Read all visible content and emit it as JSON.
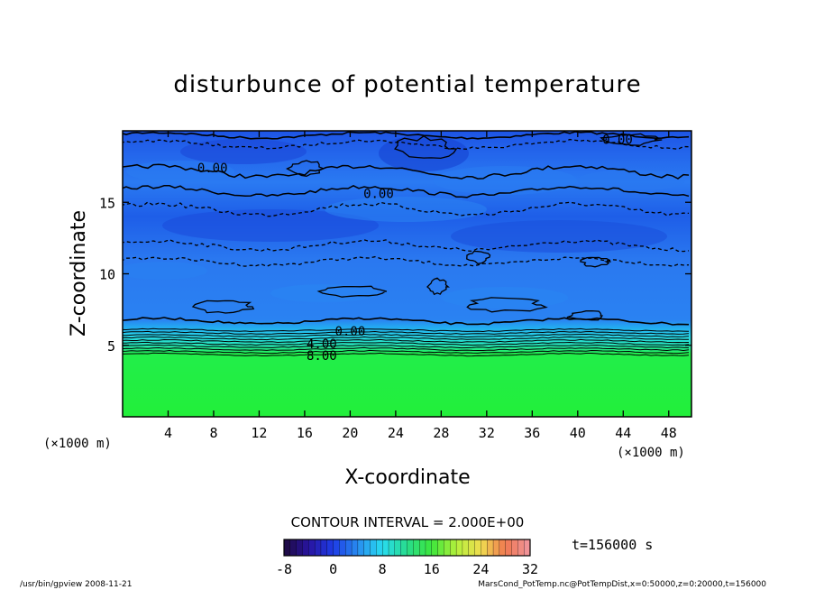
{
  "chart_data": {
    "type": "heatmap",
    "title": "disturbunce of potential temperature",
    "xlabel": "X-coordinate",
    "ylabel": "Z-coordinate",
    "x_unit_left": "(×1000 m)",
    "x_unit_right": "(×1000 m)",
    "xlim": [
      0,
      50
    ],
    "ylim": [
      0,
      20
    ],
    "xticks": [
      4,
      8,
      12,
      16,
      20,
      24,
      28,
      32,
      36,
      40,
      44,
      48
    ],
    "xtick_labels": [
      "4",
      "8",
      "12",
      "16",
      "20",
      "24",
      "28",
      "32",
      "36",
      "40",
      "44",
      "48"
    ],
    "yticks": [
      5,
      10,
      15
    ],
    "ytick_labels": [
      "5",
      "10",
      "15"
    ],
    "contour_labels": [
      {
        "text": "0.00",
        "x": 43.5,
        "y": 19.4
      },
      {
        "text": "0.00",
        "x": 7.9,
        "y": 17.4
      },
      {
        "text": "0.00",
        "x": 22.5,
        "y": 15.6
      },
      {
        "text": "0.00",
        "x": 20.0,
        "y": 6.0
      },
      {
        "text": "4.00",
        "x": 17.5,
        "y": 5.1
      },
      {
        "text": "8.00",
        "x": 17.5,
        "y": 4.3
      }
    ],
    "contour_interval_text": "CONTOUR INTERVAL = 2.000E+00",
    "colorbar": {
      "min": -8,
      "max": 32,
      "tick_values": [
        -8,
        0,
        8,
        16,
        24,
        32
      ],
      "tick_labels": [
        "-8",
        "0",
        "8",
        "16",
        "24",
        "32"
      ]
    },
    "time_text": "t=156000 s",
    "grid": false
  },
  "footer": {
    "left": "/usr/bin/gpview  2008-11-21",
    "right": "MarsCond_PotTemp.nc@PotTempDist,x=0:50000,z=0:20000,t=156000"
  },
  "colors": {
    "upper_field": "#1f6af0",
    "lower_field": "#22f03c",
    "transition_band": "#2ad6f0"
  }
}
